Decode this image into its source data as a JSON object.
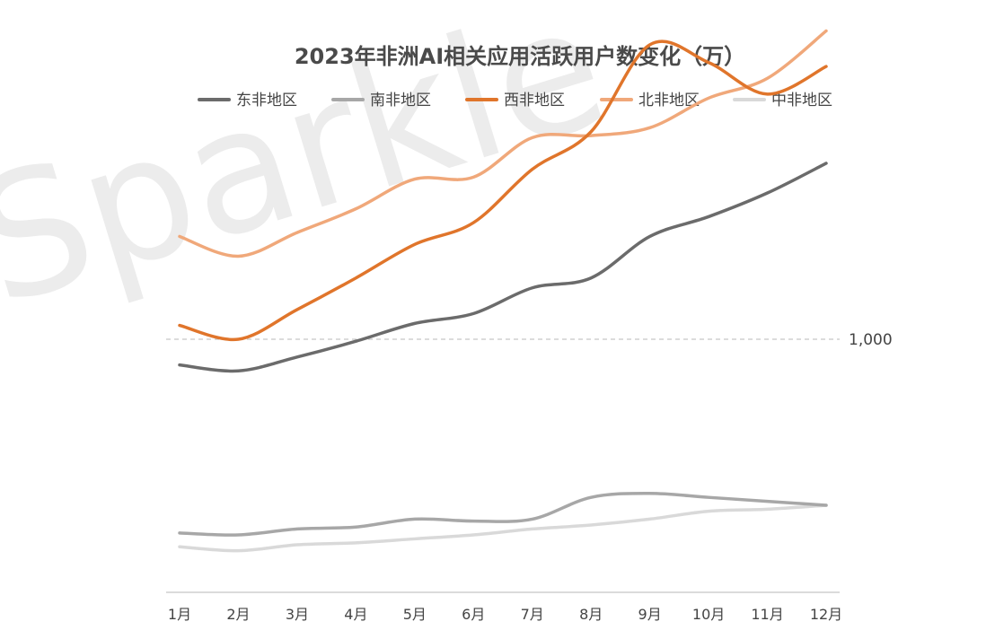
{
  "chart_data": {
    "type": "line",
    "title": "2023年非洲AI相关应用活跃用户数变化（万）",
    "watermark": "Sparkle",
    "categories": [
      "1月",
      "2月",
      "3月",
      "4月",
      "5月",
      "6月",
      "7月",
      "8月",
      "9月",
      "10月",
      "11月",
      "12月"
    ],
    "reference_line": {
      "value": 1000,
      "label": "1,000"
    },
    "series": [
      {
        "name": "东非地区",
        "color": "#6b6b6b",
        "values": [
          935,
          920,
          955,
          995,
          1040,
          1065,
          1130,
          1155,
          1260,
          1310,
          1370,
          1445
        ]
      },
      {
        "name": "南非地区",
        "color": "#a7a7a7",
        "values": [
          510,
          505,
          520,
          525,
          545,
          540,
          545,
          600,
          610,
          600,
          590,
          580
        ]
      },
      {
        "name": "西非地区",
        "color": "#e0752b",
        "values": [
          1035,
          1000,
          1075,
          1155,
          1240,
          1295,
          1430,
          1525,
          1745,
          1700,
          1620,
          1690
        ]
      },
      {
        "name": "北非地区",
        "color": "#f0a87a",
        "values": [
          1260,
          1210,
          1270,
          1330,
          1405,
          1410,
          1510,
          1515,
          1535,
          1610,
          1660,
          1780
        ]
      },
      {
        "name": "中非地区",
        "color": "#d9d9d9",
        "values": [
          475,
          465,
          480,
          485,
          495,
          505,
          520,
          530,
          545,
          565,
          570,
          580
        ]
      }
    ]
  }
}
